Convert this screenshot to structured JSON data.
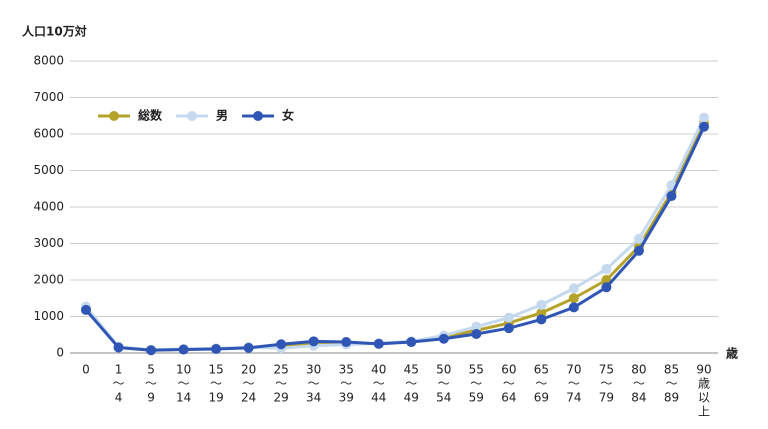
{
  "chart_data": {
    "type": "line",
    "y_label": "人口10万対",
    "x_label": "歳",
    "categories": [
      [
        "0"
      ],
      [
        "1",
        "〜",
        "4"
      ],
      [
        "5",
        "〜",
        "9"
      ],
      [
        "10",
        "〜",
        "14"
      ],
      [
        "15",
        "〜",
        "19"
      ],
      [
        "20",
        "〜",
        "24"
      ],
      [
        "25",
        "〜",
        "29"
      ],
      [
        "30",
        "〜",
        "34"
      ],
      [
        "35",
        "〜",
        "39"
      ],
      [
        "40",
        "〜",
        "44"
      ],
      [
        "45",
        "〜",
        "49"
      ],
      [
        "50",
        "〜",
        "54"
      ],
      [
        "55",
        "〜",
        "59"
      ],
      [
        "60",
        "〜",
        "64"
      ],
      [
        "65",
        "〜",
        "69"
      ],
      [
        "70",
        "〜",
        "74"
      ],
      [
        "75",
        "〜",
        "79"
      ],
      [
        "80",
        "〜",
        "84"
      ],
      [
        "85",
        "〜",
        "89"
      ],
      [
        "90",
        "歳",
        "以",
        "上"
      ]
    ],
    "series": [
      {
        "name": "総数",
        "color": "#b5a22a",
        "values": [
          1220,
          160,
          80,
          100,
          120,
          150,
          190,
          270,
          260,
          260,
          310,
          430,
          620,
          820,
          1100,
          1500,
          2000,
          2920,
          4400,
          6300
        ]
      },
      {
        "name": "男",
        "color": "#c5d9ee",
        "values": [
          1270,
          170,
          85,
          105,
          125,
          160,
          130,
          200,
          230,
          270,
          320,
          480,
          720,
          970,
          1320,
          1770,
          2300,
          3130,
          4600,
          6450
        ]
      },
      {
        "name": "女",
        "color": "#2f55b5",
        "values": [
          1180,
          150,
          75,
          95,
          110,
          140,
          240,
          320,
          300,
          250,
          300,
          390,
          520,
          680,
          920,
          1250,
          1800,
          2800,
          4300,
          6200
        ]
      }
    ],
    "ylim": [
      0,
      8000
    ],
    "yticks": [
      0,
      1000,
      2000,
      3000,
      4000,
      5000,
      6000,
      7000,
      8000
    ],
    "grid": true,
    "legend": "upper left"
  }
}
